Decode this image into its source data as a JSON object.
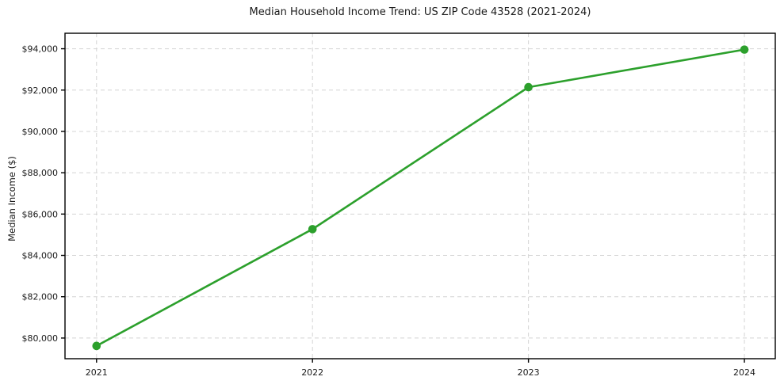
{
  "chart_data": {
    "type": "line",
    "title": "Median Household Income Trend: US ZIP Code 43528 (2021-2024)",
    "xlabel": "",
    "ylabel": "Median Income ($)",
    "categories": [
      2021,
      2022,
      2023,
      2024
    ],
    "x_tick_labels": [
      "2021",
      "2022",
      "2023",
      "2024"
    ],
    "series": [
      {
        "name": "Median household income",
        "values": [
          79620,
          85270,
          92140,
          93960
        ]
      }
    ],
    "y_ticks": [
      80000,
      82000,
      84000,
      86000,
      88000,
      90000,
      92000,
      94000
    ],
    "y_tick_labels": [
      "$80,000",
      "$82,000",
      "$84,000",
      "$86,000",
      "$88,000",
      "$90,000",
      "$92,000",
      "$94,000"
    ],
    "ylim": [
      79000,
      94750
    ],
    "xlim": [
      2020.854,
      2024.143
    ],
    "grid": "dashed-both-axes",
    "legend": "none",
    "colors": {
      "line": "#2ca02c",
      "marker": "#2ca02c",
      "grid": "#d4d4d4",
      "frame": "#000000",
      "background": "#ffffff",
      "text": "#1a1a1a"
    }
  }
}
